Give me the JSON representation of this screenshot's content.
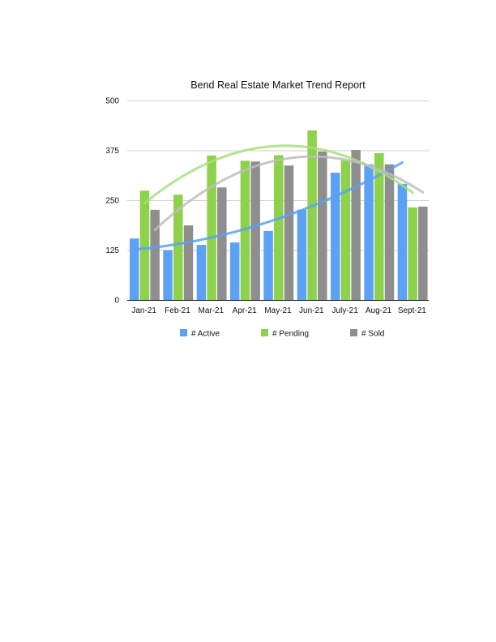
{
  "chart_data": {
    "type": "bar",
    "title": "Bend Real Estate Market Trend Report",
    "xlabel": "",
    "ylabel": "",
    "ylim": [
      0,
      500
    ],
    "yticks": [
      0,
      125,
      250,
      375,
      500
    ],
    "grid": true,
    "legend_position": "bottom",
    "categories": [
      "Jan-21",
      "Feb-21",
      "Mar-21",
      "Apr-21",
      "May-21",
      "Jun-21",
      "July-21",
      "Aug-21",
      "Sept-21"
    ],
    "series": [
      {
        "name": "# Active",
        "color": "#5BA1F5",
        "values": [
          154,
          125,
          138,
          144,
          173,
          226,
          319,
          340,
          291
        ]
      },
      {
        "name": "# Pending",
        "color": "#8ED14B",
        "values": [
          274,
          264,
          362,
          349,
          363,
          425,
          350,
          368,
          232
        ]
      },
      {
        "name": "# Sold",
        "color": "#8E8E8E",
        "values": [
          226,
          187,
          282,
          347,
          337,
          372,
          376,
          340,
          234
        ]
      }
    ],
    "trendlines": [
      {
        "series": "# Active",
        "type": "polynomial",
        "color": "#5BA1F5"
      },
      {
        "series": "# Pending",
        "type": "polynomial",
        "color": "#A6E07A"
      },
      {
        "series": "# Sold",
        "type": "polynomial",
        "color": "#BDBDBD"
      }
    ]
  }
}
